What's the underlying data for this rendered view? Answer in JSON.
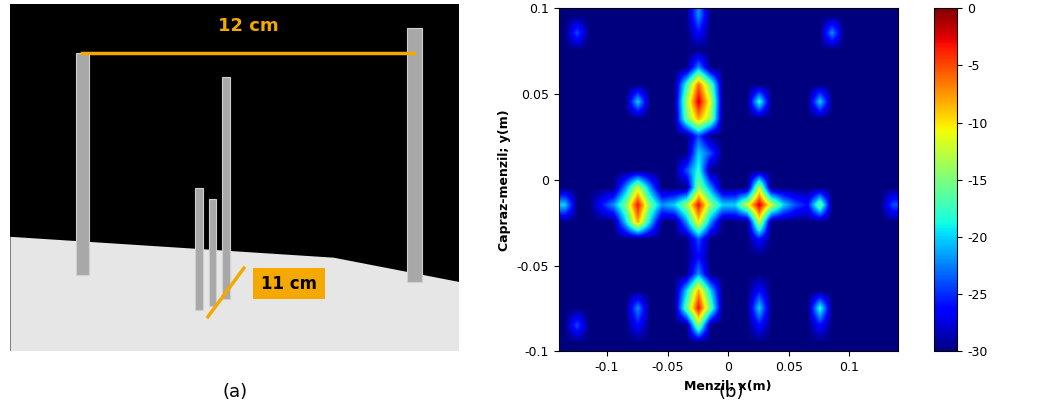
{
  "photo": {
    "caption": "(a)",
    "dimensions": [
      "12 cm",
      "11 cm"
    ]
  },
  "chart_data": {
    "type": "heatmap",
    "caption": "(b)",
    "x_label": "Menzil; x(m)",
    "y_label": "Capraz-menzil; y(m)",
    "xlim": [
      -0.14,
      0.14
    ],
    "ylim": [
      -0.1,
      0.1
    ],
    "xticks": [
      -0.1,
      -0.05,
      0,
      0.05,
      0.1
    ],
    "yticks": [
      -0.1,
      -0.05,
      0,
      0.05,
      0.1
    ],
    "colorbar_range": [
      -30,
      0
    ],
    "colorbar_ticks": [
      -30,
      -25,
      -20,
      -15,
      -10,
      -5,
      0
    ],
    "cells": [
      [
        -30,
        -30,
        -30,
        -30,
        -30,
        -30,
        -30,
        -30,
        -30,
        -30,
        -30,
        -30,
        -30,
        -30,
        -30,
        -30,
        -30,
        -30,
        -30,
        -30,
        -30,
        -30,
        -30,
        -30,
        -30,
        -30,
        -30,
        -30
      ],
      [
        -30,
        -24,
        -30,
        -30,
        -30,
        -30,
        -26,
        -30,
        -30,
        -30,
        -30,
        -14,
        -30,
        -30,
        -30,
        -30,
        -26,
        -30,
        -30,
        -30,
        -30,
        -26,
        -30,
        -30,
        -30,
        -30,
        -30,
        -30
      ],
      [
        -30,
        -30,
        -30,
        -30,
        -30,
        -30,
        -22,
        -30,
        -30,
        -30,
        -16,
        -3,
        -16,
        -30,
        -30,
        -30,
        -20,
        -30,
        -30,
        -30,
        -30,
        -18,
        -30,
        -30,
        -30,
        -30,
        -30,
        -30
      ],
      [
        -30,
        -30,
        -30,
        -30,
        -30,
        -30,
        -30,
        -30,
        -30,
        -30,
        -20,
        -8,
        -20,
        -30,
        -30,
        -30,
        -26,
        -30,
        -30,
        -30,
        -30,
        -30,
        -30,
        -30,
        -30,
        -30,
        -30,
        -30
      ],
      [
        -30,
        -30,
        -30,
        -30,
        -30,
        -30,
        -30,
        -30,
        -30,
        -30,
        -30,
        -22,
        -30,
        -30,
        -30,
        -30,
        -30,
        -30,
        -30,
        -30,
        -30,
        -30,
        -30,
        -30,
        -30,
        -30,
        -30,
        -30
      ],
      [
        -30,
        -30,
        -30,
        -30,
        -30,
        -30,
        -30,
        -30,
        -30,
        -30,
        -30,
        -26,
        -30,
        -30,
        -30,
        -30,
        -30,
        -30,
        -30,
        -30,
        -30,
        -30,
        -30,
        -30,
        -30,
        -30,
        -30,
        -30
      ],
      [
        -30,
        -30,
        -30,
        -30,
        -30,
        -30,
        -30,
        -30,
        -30,
        -30,
        -30,
        -24,
        -30,
        -30,
        -30,
        -30,
        -26,
        -30,
        -30,
        -30,
        -30,
        -30,
        -30,
        -30,
        -30,
        -30,
        -30,
        -30
      ],
      [
        -30,
        -30,
        -30,
        -30,
        -30,
        -20,
        -8,
        -20,
        -30,
        -30,
        -22,
        -10,
        -22,
        -30,
        -30,
        -30,
        -12,
        -30,
        -30,
        -30,
        -30,
        -30,
        -30,
        -30,
        -30,
        -30,
        -30,
        -30
      ],
      [
        -20,
        -30,
        -30,
        -26,
        -22,
        -15,
        -3,
        -15,
        -22,
        -20,
        -14,
        -3,
        -14,
        -20,
        -20,
        -12,
        -2,
        -12,
        -20,
        -24,
        -26,
        -15,
        -30,
        -30,
        -30,
        -30,
        -30,
        -24
      ],
      [
        -30,
        -30,
        -30,
        -30,
        -30,
        -22,
        -12,
        -22,
        -30,
        -30,
        -30,
        -14,
        -22,
        -30,
        -30,
        -30,
        -12,
        -30,
        -30,
        -30,
        -30,
        -30,
        -30,
        -30,
        -30,
        -30,
        -30,
        -30
      ],
      [
        -30,
        -30,
        -30,
        -30,
        -30,
        -30,
        -30,
        -30,
        -30,
        -30,
        -24,
        -18,
        -30,
        -30,
        -30,
        -30,
        -30,
        -30,
        -30,
        -30,
        -30,
        -30,
        -30,
        -30,
        -30,
        -30,
        -30,
        -30
      ],
      [
        -30,
        -30,
        -30,
        -30,
        -30,
        -30,
        -30,
        -30,
        -30,
        -30,
        -30,
        -20,
        -24,
        -30,
        -30,
        -30,
        -30,
        -30,
        -30,
        -30,
        -30,
        -30,
        -30,
        -30,
        -30,
        -30,
        -30,
        -30
      ],
      [
        -30,
        -30,
        -30,
        -30,
        -30,
        -30,
        -30,
        -30,
        -30,
        -30,
        -30,
        -24,
        -30,
        -30,
        -30,
        -30,
        -30,
        -30,
        -30,
        -30,
        -30,
        -30,
        -30,
        -30,
        -30,
        -30,
        -30,
        -30
      ],
      [
        -30,
        -30,
        -30,
        -30,
        -30,
        -30,
        -30,
        -30,
        -30,
        -30,
        -16,
        -8,
        -14,
        -30,
        -30,
        -30,
        -30,
        -30,
        -30,
        -30,
        -30,
        -30,
        -30,
        -30,
        -30,
        -30,
        -30,
        -30
      ],
      [
        -30,
        -30,
        -30,
        -30,
        -30,
        -30,
        -20,
        -30,
        -30,
        -30,
        -14,
        -2,
        -12,
        -30,
        -30,
        -30,
        -18,
        -30,
        -30,
        -30,
        -30,
        -20,
        -30,
        -30,
        -30,
        -30,
        -30,
        -30
      ],
      [
        -30,
        -30,
        -30,
        -30,
        -30,
        -30,
        -30,
        -30,
        -30,
        -30,
        -18,
        -6,
        -16,
        -30,
        -30,
        -30,
        -30,
        -30,
        -30,
        -30,
        -30,
        -30,
        -30,
        -30,
        -30,
        -30,
        -30,
        -30
      ],
      [
        -30,
        -30,
        -30,
        -30,
        -30,
        -30,
        -30,
        -30,
        -30,
        -30,
        -30,
        -22,
        -30,
        -30,
        -30,
        -30,
        -30,
        -30,
        -30,
        -30,
        -30,
        -30,
        -30,
        -30,
        -30,
        -30,
        -30,
        -30
      ],
      [
        -30,
        -30,
        -30,
        -30,
        -30,
        -30,
        -30,
        -30,
        -30,
        -30,
        -30,
        -30,
        -30,
        -30,
        -30,
        -30,
        -30,
        -30,
        -30,
        -30,
        -30,
        -30,
        -30,
        -30,
        -30,
        -30,
        -30,
        -30
      ],
      [
        -30,
        -24,
        -30,
        -30,
        -30,
        -30,
        -30,
        -30,
        -30,
        -30,
        -30,
        -26,
        -30,
        -30,
        -30,
        -30,
        -30,
        -30,
        -30,
        -30,
        -30,
        -30,
        -22,
        -30,
        -30,
        -30,
        -30,
        -30
      ],
      [
        -30,
        -30,
        -30,
        -30,
        -30,
        -30,
        -30,
        -30,
        -30,
        -30,
        -30,
        -22,
        -30,
        -30,
        -30,
        -30,
        -30,
        -30,
        -30,
        -30,
        -30,
        -30,
        -30,
        -30,
        -30,
        -30,
        -30,
        -30
      ]
    ]
  }
}
